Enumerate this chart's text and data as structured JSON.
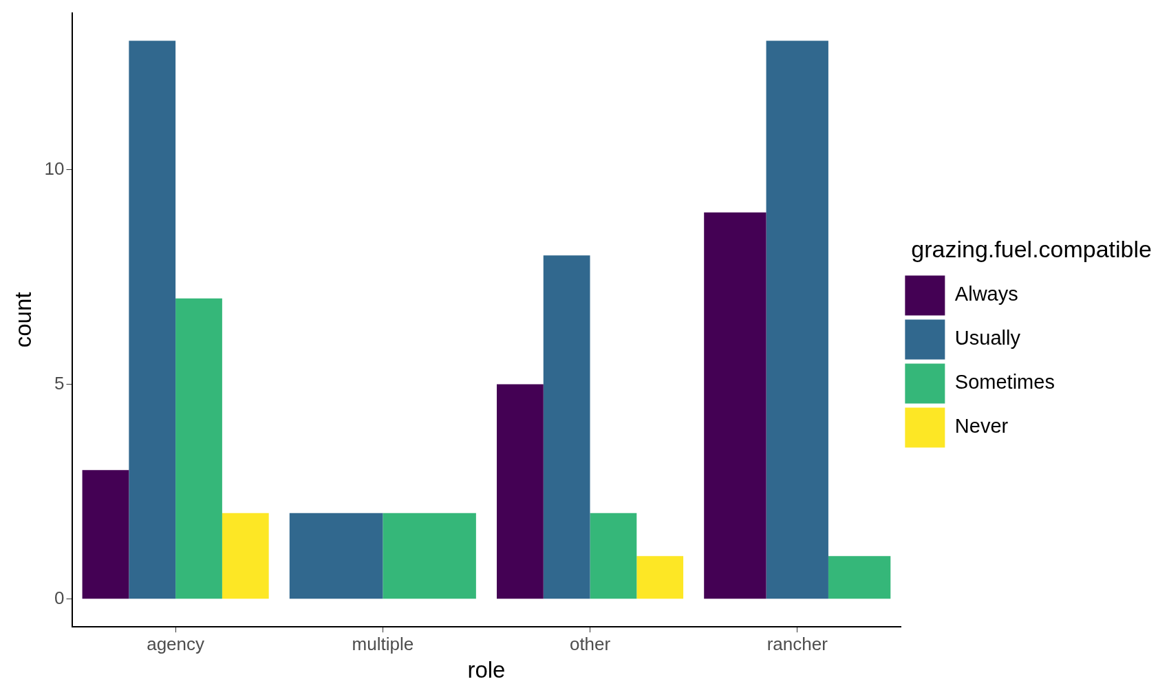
{
  "chart_data": {
    "type": "bar",
    "xlabel": "role",
    "ylabel": "count",
    "legend_title": "grazing.fuel.compatible",
    "legend": "right",
    "categories": [
      "agency",
      "multiple",
      "other",
      "rancher"
    ],
    "series": [
      {
        "name": "Always",
        "color": "#440154",
        "values": [
          3,
          null,
          5,
          9
        ]
      },
      {
        "name": "Usually",
        "color": "#31688e",
        "values": [
          13,
          2,
          8,
          13
        ]
      },
      {
        "name": "Sometimes",
        "color": "#35b779",
        "values": [
          7,
          2,
          2,
          1
        ]
      },
      {
        "name": "Never",
        "color": "#fde725",
        "values": [
          2,
          null,
          1,
          null
        ]
      }
    ],
    "ylim": [
      -0.65,
      13.65
    ],
    "yticks": [
      0,
      5,
      10
    ]
  }
}
